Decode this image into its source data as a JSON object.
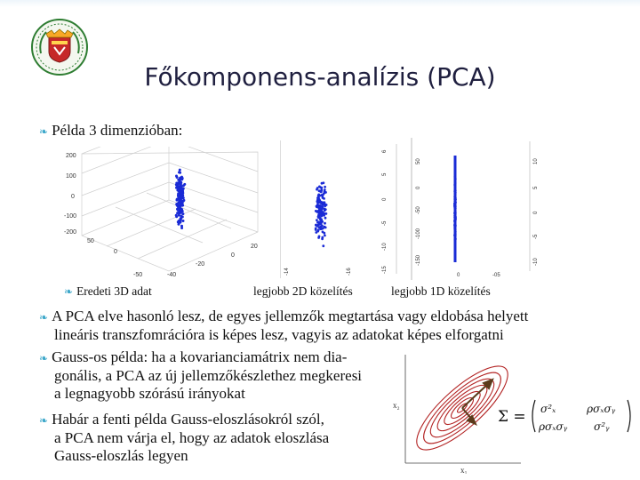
{
  "slide": {
    "title": "Főkomponens-analízis (PCA)",
    "intro": "Példa 3 dimenzióban:"
  },
  "figures": {
    "captions": [
      "Eredeti 3D adat",
      "legjobb 2D közelítés",
      "legjobb 1D közelítés"
    ],
    "panel3d": {
      "y_ticks": [
        "200",
        "100",
        "0",
        "-100",
        "-200"
      ],
      "x_ticks": [
        "-50",
        "0",
        "50"
      ],
      "side_ticks": [
        "20",
        "0",
        "-20",
        "-40"
      ]
    },
    "panel2d": {
      "bottom_ticks": [
        "-14",
        "-16"
      ]
    },
    "panel2d_side": {
      "ticks": [
        "6",
        "5",
        "0",
        "-5",
        "-10",
        "-15"
      ]
    },
    "panel1d": {
      "right_ticks": [
        "10",
        "5",
        "0",
        "-5",
        "-10"
      ],
      "mid_ticks": [
        "50",
        "0",
        "-50",
        "-100",
        "-150"
      ],
      "bottom_ticks": [
        "0",
        "-05"
      ]
    }
  },
  "bullets": [
    {
      "lines": [
        "A PCA elve hasonló lesz, de egyes jellemzők megtartása vagy eldobása helyett",
        "lineáris transzfomrációra is képes lesz, vagyis az adatokat képes elforgatni"
      ]
    },
    {
      "lines": [
        "Gauss-os példa: ha a kovarianciamátrix nem dia-",
        "gonális, a PCA az új jellemzőkészlethez megkeresi",
        "a legnagyobb szórású irányokat"
      ]
    },
    {
      "lines": [
        "Habár a fenti példa Gauss-eloszlásokról szól,",
        "a PCA nem várja el, hogy az adatok eloszlása",
        "Gauss-eloszlás legyen"
      ]
    }
  ],
  "formula": {
    "lhs": "Σ =",
    "m11": "σ²ₓ",
    "m12": "ρσₓσᵧ",
    "m21": "ρσₓσᵧ",
    "m22": "σ²ᵧ"
  },
  "ellipse_axis_labels": {
    "y": "x₂",
    "x": "x₁"
  },
  "colors": {
    "accent": "#3aa6c9",
    "points": "#1a2bd6",
    "ellipse": "#b22222"
  }
}
